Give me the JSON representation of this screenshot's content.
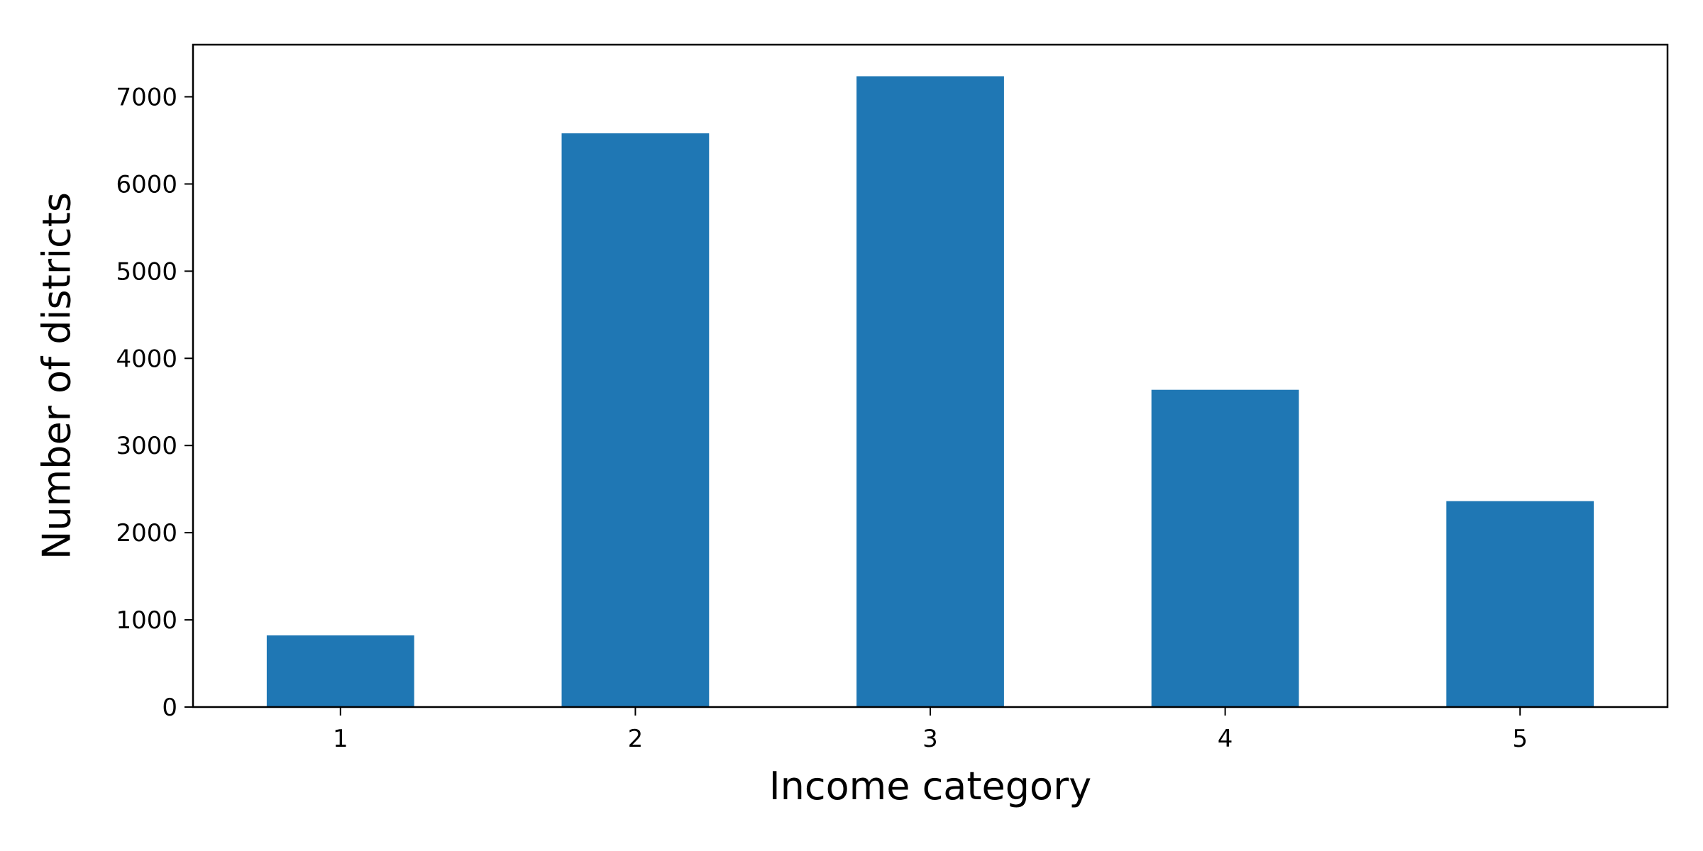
{
  "chart_data": {
    "type": "bar",
    "title": "",
    "xlabel": "Income category",
    "ylabel": "Number of districts",
    "categories": [
      "1",
      "2",
      "3",
      "4",
      "5"
    ],
    "values": [
      822,
      6581,
      7236,
      3639,
      2362
    ],
    "ylim": [
      0,
      7598
    ],
    "yticks": [
      0,
      1000,
      2000,
      3000,
      4000,
      5000,
      6000,
      7000
    ],
    "grid": false,
    "legend": "none",
    "bar_color": "#1f77b4"
  }
}
